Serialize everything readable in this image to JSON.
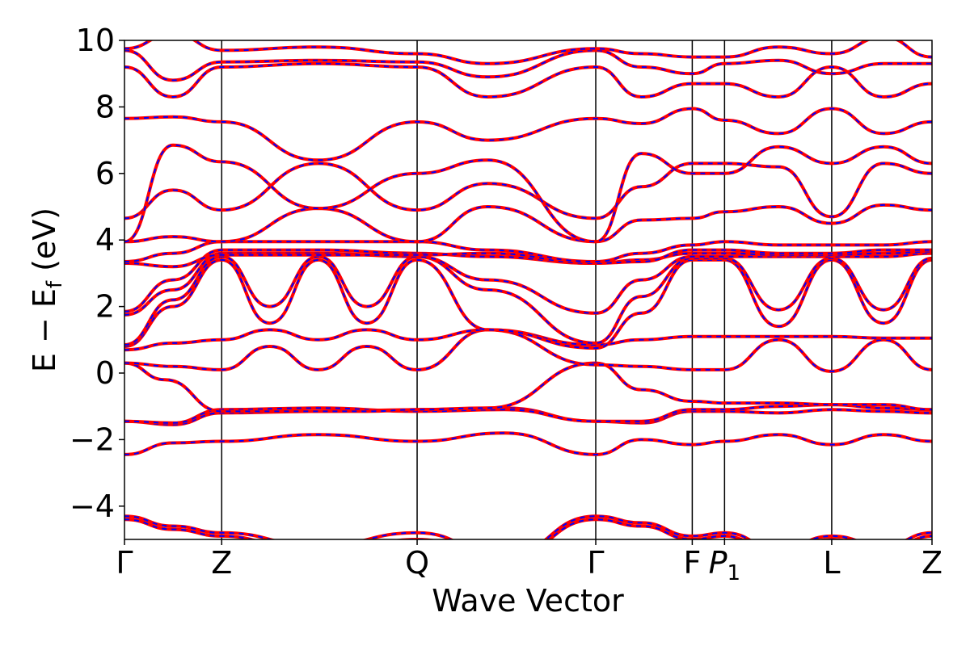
{
  "chart_data": {
    "type": "line",
    "title": "",
    "xlabel": "Wave Vector",
    "ylabel_parts": {
      "main": "E − E",
      "sub": "f",
      "unit": " (eV)"
    },
    "ylim": [
      -5,
      10
    ],
    "xlim": [
      0,
      1
    ],
    "yticks": [
      {
        "value": -4,
        "label": "−4"
      },
      {
        "value": -2,
        "label": "−2"
      },
      {
        "value": 0,
        "label": "0"
      },
      {
        "value": 2,
        "label": "2"
      },
      {
        "value": 4,
        "label": "4"
      },
      {
        "value": 6,
        "label": "6"
      },
      {
        "value": 8,
        "label": "8"
      },
      {
        "value": 10,
        "label": "10"
      }
    ],
    "kpoints": [
      {
        "pos": 0.0,
        "label": "Γ"
      },
      {
        "pos": 0.1204,
        "label": "Z"
      },
      {
        "pos": 0.3624,
        "label": "Q"
      },
      {
        "pos": 0.5836,
        "label": "Γ"
      },
      {
        "pos": 0.7031,
        "label": "F"
      },
      {
        "pos": 0.7431,
        "label": "P",
        "sub": "1"
      },
      {
        "pos": 0.8758,
        "label": "L"
      },
      {
        "pos": 1.0,
        "label": "Z"
      }
    ],
    "grid": false,
    "legend": "none",
    "series": [
      {
        "color": "#ff0000",
        "style": "solid"
      },
      {
        "color": "#0000ff",
        "style": "dashed"
      }
    ],
    "bands": [
      {
        "x": [
          0.0,
          0.06,
          0.1204,
          0.24,
          0.3624,
          0.47,
          0.5836,
          0.64,
          0.7031,
          0.7431,
          0.81,
          0.8758,
          0.94,
          1.0
        ],
        "y": [
          -2.45,
          -2.1,
          -2.05,
          -1.85,
          -2.05,
          -1.8,
          -2.45,
          -2.0,
          -2.15,
          -2.05,
          -1.85,
          -2.15,
          -1.85,
          -2.05
        ]
      },
      {
        "x": [
          0.0,
          0.06,
          0.1204,
          0.24,
          0.3624,
          0.47,
          0.5836,
          0.64,
          0.7031,
          0.7431,
          0.81,
          0.8758,
          0.94,
          1.0
        ],
        "y": [
          -1.45,
          -1.55,
          -1.2,
          -1.15,
          -1.1,
          -1.05,
          -1.45,
          -1.5,
          -1.15,
          -1.15,
          -1.2,
          -1.1,
          -1.15,
          -1.2
        ]
      },
      {
        "x": [
          0.0,
          0.06,
          0.1204,
          0.24,
          0.3624,
          0.47,
          0.5836,
          0.64,
          0.7031,
          0.7431,
          0.81,
          0.8758,
          0.94,
          1.0
        ],
        "y": [
          -1.45,
          -1.5,
          -1.1,
          -1.05,
          -1.15,
          -1.1,
          -1.45,
          -1.45,
          -1.1,
          -1.1,
          -1.0,
          -0.95,
          -1.05,
          -1.1
        ]
      },
      {
        "x": [
          0.0,
          0.05,
          0.1204,
          0.18,
          0.24,
          0.3,
          0.3624,
          0.45,
          0.5836,
          0.64,
          0.7031,
          0.7431,
          0.81,
          0.8758,
          0.94,
          1.0
        ],
        "y": [
          0.3,
          -0.2,
          -1.15,
          -1.15,
          -1.15,
          -1.15,
          -1.1,
          -1.05,
          0.3,
          -0.5,
          -0.85,
          -0.9,
          -0.9,
          -0.95,
          -0.95,
          -1.1
        ]
      },
      {
        "x": [
          0.0,
          0.06,
          0.1204,
          0.18,
          0.24,
          0.3,
          0.3624,
          0.45,
          0.5836,
          0.64,
          0.7031,
          0.7431,
          0.81,
          0.8758,
          0.94,
          1.0
        ],
        "y": [
          0.3,
          0.2,
          0.1,
          0.8,
          0.1,
          0.8,
          0.1,
          1.3,
          0.25,
          0.2,
          0.1,
          0.1,
          1.0,
          0.05,
          1.0,
          0.1
        ]
      },
      {
        "x": [
          0.0,
          0.06,
          0.1204,
          0.18,
          0.24,
          0.3,
          0.3624,
          0.45,
          0.5836,
          0.64,
          0.7031,
          0.7431,
          0.81,
          0.8758,
          0.94,
          1.0
        ],
        "y": [
          0.7,
          0.9,
          1.0,
          1.3,
          1.0,
          1.3,
          1.0,
          1.3,
          0.85,
          1.0,
          1.1,
          1.1,
          1.1,
          1.1,
          1.05,
          1.05
        ]
      },
      {
        "x": [
          0.0,
          0.06,
          0.1204,
          0.18,
          0.24,
          0.3,
          0.3624,
          0.45,
          0.5836,
          0.64,
          0.7031,
          0.7431,
          0.81,
          0.8758,
          0.94,
          1.0
        ],
        "y": [
          0.8,
          2.0,
          3.4,
          1.5,
          3.4,
          1.5,
          3.4,
          1.3,
          0.75,
          1.8,
          3.4,
          3.4,
          1.4,
          3.4,
          1.5,
          3.4
        ]
      },
      {
        "x": [
          0.0,
          0.06,
          0.1204,
          0.18,
          0.24,
          0.3,
          0.3624,
          0.45,
          0.5836,
          0.64,
          0.7031,
          0.7431,
          0.81,
          0.8758,
          0.94,
          1.0
        ],
        "y": [
          0.85,
          2.2,
          3.5,
          2.0,
          3.5,
          2.0,
          3.5,
          2.5,
          0.9,
          2.3,
          3.45,
          3.45,
          1.9,
          3.45,
          1.9,
          3.45
        ]
      },
      {
        "x": [
          0.0,
          0.06,
          0.1204,
          0.24,
          0.3624,
          0.45,
          0.5836,
          0.64,
          0.7031,
          0.7431,
          0.81,
          0.8758,
          0.94,
          1.0
        ],
        "y": [
          1.75,
          2.5,
          3.6,
          3.6,
          3.5,
          2.8,
          1.8,
          2.8,
          3.5,
          3.5,
          3.5,
          3.5,
          3.5,
          3.6
        ]
      },
      {
        "x": [
          0.0,
          0.06,
          0.1204,
          0.24,
          0.3624,
          0.45,
          0.5836,
          0.64,
          0.7031,
          0.7431,
          0.81,
          0.8758,
          0.94,
          1.0
        ],
        "y": [
          1.85,
          2.8,
          3.7,
          3.7,
          3.6,
          3.5,
          3.3,
          3.4,
          3.6,
          3.6,
          3.55,
          3.55,
          3.6,
          3.65
        ]
      },
      {
        "x": [
          0.0,
          0.06,
          0.1204,
          0.24,
          0.3624,
          0.45,
          0.5836,
          0.64,
          0.7031,
          0.7431,
          0.81,
          0.8758,
          0.94,
          1.0
        ],
        "y": [
          3.3,
          3.2,
          3.55,
          3.55,
          3.55,
          3.6,
          3.3,
          3.35,
          3.7,
          3.7,
          3.6,
          3.6,
          3.7,
          3.7
        ]
      },
      {
        "x": [
          0.0,
          0.06,
          0.1204,
          0.24,
          0.3624,
          0.45,
          0.5836,
          0.64,
          0.7031,
          0.7431,
          0.81,
          0.8758,
          0.94,
          1.0
        ],
        "y": [
          3.35,
          3.6,
          3.95,
          3.95,
          3.95,
          3.7,
          3.35,
          3.6,
          3.85,
          3.95,
          3.85,
          3.85,
          3.85,
          3.95
        ]
      },
      {
        "x": [
          0.0,
          0.06,
          0.1204,
          0.24,
          0.3624,
          0.45,
          0.5836,
          0.64,
          0.7031,
          0.7431,
          0.81,
          0.8758,
          0.94,
          1.0
        ],
        "y": [
          3.95,
          4.1,
          3.95,
          4.95,
          3.95,
          5.0,
          3.95,
          4.6,
          4.65,
          4.85,
          5.0,
          4.5,
          5.05,
          4.9
        ]
      },
      {
        "x": [
          0.0,
          0.06,
          0.1204,
          0.24,
          0.3624,
          0.45,
          0.5836,
          0.64,
          0.7031,
          0.7431,
          0.81,
          0.8758,
          0.94,
          1.0
        ],
        "y": [
          4.65,
          5.5,
          4.9,
          6.3,
          4.9,
          5.7,
          4.65,
          5.6,
          6.3,
          6.3,
          6.2,
          4.7,
          6.3,
          6.0
        ]
      },
      {
        "x": [
          0.0,
          0.06,
          0.1204,
          0.24,
          0.3624,
          0.45,
          0.5836,
          0.64,
          0.7031,
          0.7431,
          0.81,
          0.8758,
          0.94,
          1.0
        ],
        "y": [
          3.95,
          6.85,
          6.35,
          4.95,
          6.0,
          6.4,
          3.95,
          6.6,
          6.0,
          6.0,
          6.8,
          6.3,
          6.8,
          6.3
        ]
      },
      {
        "x": [
          0.0,
          0.06,
          0.1204,
          0.24,
          0.3624,
          0.45,
          0.5836,
          0.64,
          0.7031,
          0.7431,
          0.81,
          0.8758,
          0.94,
          1.0
        ],
        "y": [
          7.65,
          7.7,
          7.55,
          6.4,
          7.55,
          7.0,
          7.65,
          7.5,
          7.95,
          7.6,
          7.2,
          7.95,
          7.2,
          7.55
        ]
      },
      {
        "x": [
          0.0,
          0.06,
          0.1204,
          0.24,
          0.3624,
          0.45,
          0.5836,
          0.64,
          0.7031,
          0.7431,
          0.81,
          0.8758,
          0.94,
          1.0
        ],
        "y": [
          9.2,
          8.3,
          9.2,
          9.3,
          9.2,
          8.3,
          9.2,
          8.3,
          8.7,
          8.7,
          8.3,
          9.2,
          8.3,
          8.7
        ]
      },
      {
        "x": [
          0.0,
          0.06,
          0.1204,
          0.24,
          0.3624,
          0.45,
          0.5836,
          0.64,
          0.7031,
          0.7431,
          0.81,
          0.8758,
          0.94,
          1.0
        ],
        "y": [
          9.7,
          8.8,
          9.35,
          9.4,
          9.35,
          8.9,
          9.7,
          9.2,
          9.0,
          9.3,
          9.4,
          9.0,
          9.3,
          9.3
        ]
      },
      {
        "x": [
          0.0,
          0.06,
          0.1204,
          0.24,
          0.3624,
          0.45,
          0.5836,
          0.64,
          0.7031,
          0.7431,
          0.81,
          0.8758,
          0.94,
          1.0
        ],
        "y": [
          9.75,
          10.2,
          9.7,
          9.8,
          9.6,
          9.3,
          9.75,
          9.6,
          9.5,
          9.5,
          9.8,
          9.6,
          10.1,
          9.5
        ]
      },
      {
        "x": [
          0.0,
          0.06,
          0.1204,
          0.24,
          0.3624,
          0.47,
          0.5836,
          0.64,
          0.7031,
          0.7431,
          0.81,
          0.8758,
          0.94,
          1.0
        ],
        "y": [
          -4.3,
          -4.6,
          -4.8,
          -5.2,
          -4.8,
          -5.5,
          -4.3,
          -4.5,
          -4.9,
          -4.8,
          -5.3,
          -4.9,
          -5.2,
          -4.8
        ]
      },
      {
        "x": [
          0.0,
          0.06,
          0.1204,
          0.24,
          0.3624,
          0.47,
          0.5836,
          0.64,
          0.7031,
          0.7431,
          0.81,
          0.8758,
          0.94,
          1.0
        ],
        "y": [
          -4.4,
          -4.7,
          -4.9,
          -5.5,
          -5.0,
          -5.6,
          -4.4,
          -4.6,
          -5.0,
          -4.9,
          -5.5,
          -5.0,
          -5.4,
          -4.9
        ]
      }
    ]
  }
}
